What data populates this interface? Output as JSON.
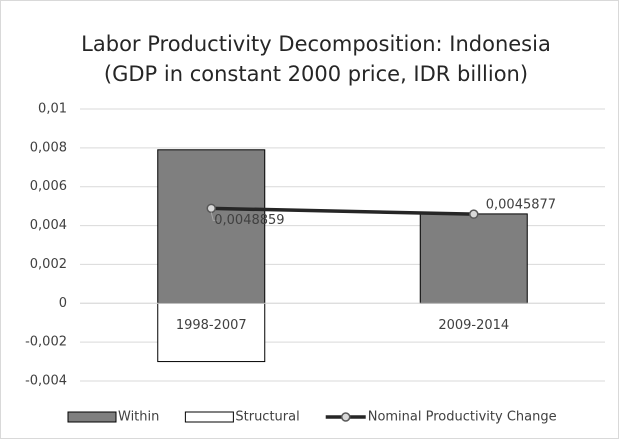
{
  "chart_data": {
    "type": "bar",
    "title": "Labor Productivity Decomposition: Indonesia",
    "subtitle": "(GDP in constant 2000 price, IDR billion)",
    "categories": [
      "1998-2007",
      "2009-2014"
    ],
    "series": [
      {
        "name": "Within",
        "color": "#7f7f7f",
        "values": [
          0.0079,
          0.0046
        ]
      },
      {
        "name": "Structural",
        "color": "#ffffff",
        "values": [
          -0.003,
          0
        ]
      },
      {
        "name": "Nominal Productivity Change",
        "type": "line",
        "color": "#262626",
        "values": [
          0.0048859,
          0.0045877
        ],
        "value_labels": [
          "0,0048859",
          "0,0045877"
        ]
      }
    ],
    "ylim": [
      -0.004,
      0.01
    ],
    "yticks": [
      {
        "value": -0.004,
        "label": "-0,004"
      },
      {
        "value": -0.002,
        "label": "-0,002"
      },
      0,
      {
        "value": 0.002,
        "label": "0,002"
      },
      {
        "value": 0.004,
        "label": "0,004"
      },
      {
        "value": 0.006,
        "label": "0,006"
      },
      {
        "value": 0.008,
        "label": "0,008"
      },
      {
        "value": 0.01,
        "label": "0,01"
      }
    ],
    "grid": true,
    "legend": "bottom"
  }
}
